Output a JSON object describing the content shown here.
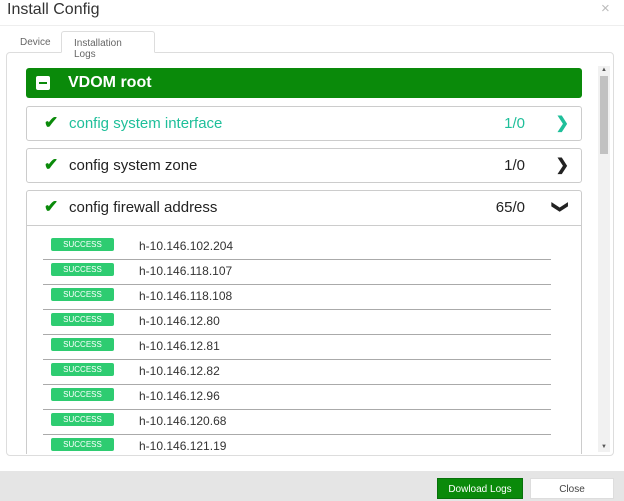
{
  "dialog": {
    "title": "Install Config",
    "close_icon": "×"
  },
  "tabs": [
    {
      "label": "Device",
      "active": false
    },
    {
      "label": "Installation Logs",
      "active": true
    }
  ],
  "vdom": {
    "label": "VDOM root",
    "color": "#0a8a0a"
  },
  "sections": [
    {
      "label": "config system interface",
      "count": "1/0",
      "state": "collapsed",
      "highlight": true
    },
    {
      "label": "config system zone",
      "count": "1/0",
      "state": "collapsed",
      "highlight": false
    },
    {
      "label": "config firewall address",
      "count": "65/0",
      "state": "expanded",
      "highlight": false
    }
  ],
  "log_items": [
    {
      "status": "SUCCESS",
      "name": "h-10.146.102.204"
    },
    {
      "status": "SUCCESS",
      "name": "h-10.146.118.107"
    },
    {
      "status": "SUCCESS",
      "name": "h-10.146.118.108"
    },
    {
      "status": "SUCCESS",
      "name": "h-10.146.12.80"
    },
    {
      "status": "SUCCESS",
      "name": "h-10.146.12.81"
    },
    {
      "status": "SUCCESS",
      "name": "h-10.146.12.82"
    },
    {
      "status": "SUCCESS",
      "name": "h-10.146.12.96"
    },
    {
      "status": "SUCCESS",
      "name": "h-10.146.120.68"
    },
    {
      "status": "SUCCESS",
      "name": "h-10.146.121.19"
    }
  ],
  "footer": {
    "download_label": "Dowload Logs",
    "close_label": "Close"
  }
}
